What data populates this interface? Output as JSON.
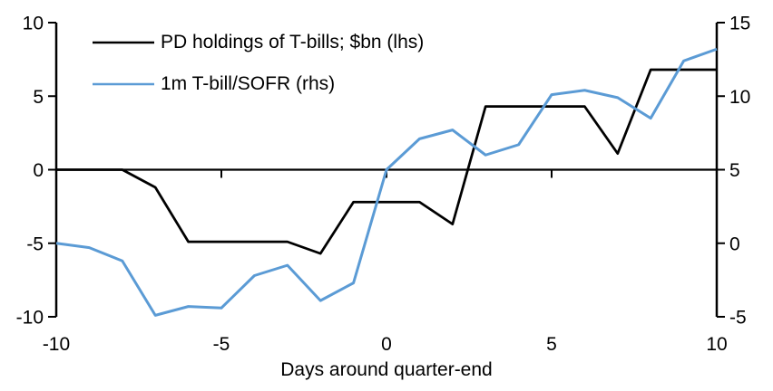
{
  "chart_data": {
    "type": "line",
    "title": "",
    "xlabel": "Days around quarter-end",
    "grid": false,
    "legend_position": "top-left",
    "x": [
      -10,
      -9,
      -8,
      -7,
      -6,
      -5,
      -4,
      -3,
      -2,
      -1,
      0,
      1,
      2,
      3,
      4,
      5,
      6,
      7,
      8,
      9,
      10
    ],
    "x_axis": {
      "range": [
        -10,
        10
      ],
      "ticks": [
        -10,
        -5,
        0,
        5,
        10
      ]
    },
    "left_axis": {
      "range": [
        -10,
        10
      ],
      "ticks": [
        10,
        5,
        0,
        -5,
        -10
      ]
    },
    "right_axis": {
      "range": [
        -5,
        15
      ],
      "ticks": [
        15,
        10,
        5,
        0,
        -5
      ]
    },
    "series": [
      {
        "name": "PD holdings of T-bills; $bn (lhs)",
        "axis": "left",
        "color": "#000000",
        "values": [
          0,
          0,
          0,
          -1.2,
          -4.9,
          -4.9,
          -4.9,
          -4.9,
          -5.7,
          -2.2,
          -2.2,
          -2.2,
          -3.7,
          4.3,
          4.3,
          4.3,
          4.3,
          1.1,
          6.8,
          6.8,
          6.8
        ]
      },
      {
        "name": "1m T-bill/SOFR (rhs)",
        "axis": "right",
        "color": "#5B9BD5",
        "values": [
          0,
          -0.3,
          -1.2,
          -4.9,
          -4.3,
          -4.4,
          -2.2,
          -1.5,
          -3.9,
          -2.7,
          5.0,
          7.1,
          7.7,
          6.0,
          6.7,
          10.1,
          10.4,
          9.9,
          8.5,
          12.4,
          13.2
        ]
      }
    ]
  }
}
